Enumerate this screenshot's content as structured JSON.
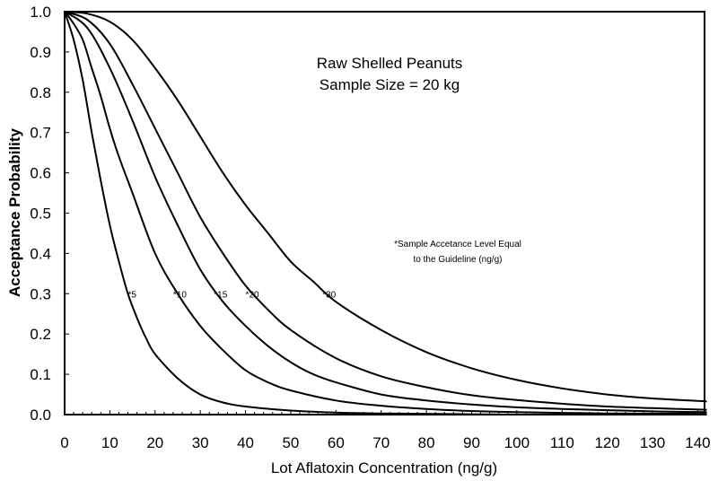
{
  "chart_data": {
    "type": "line",
    "title": "Raw Shelled Peanuts",
    "subtitle": "Sample Size = 20 kg",
    "xlabel": "Lot Aflatoxin Concentration (ng/g)",
    "ylabel": "Acceptance Probability",
    "xlim": [
      0,
      140
    ],
    "ylim": [
      0,
      1.0
    ],
    "x_ticks": [
      "0",
      "10",
      "20",
      "30",
      "40",
      "50",
      "60",
      "70",
      "80",
      "90",
      "100",
      "110",
      "120",
      "130",
      "140"
    ],
    "y_ticks": [
      "0.0",
      "0.1",
      "0.2",
      "0.3",
      "0.4",
      "0.5",
      "0.6",
      "0.7",
      "0.8",
      "0.9",
      "1.0"
    ],
    "annotation": {
      "line1": "*Sample Accetance Level Equal",
      "line2": "to the Guideline (ng/g)"
    },
    "series": [
      {
        "name": "*5",
        "label_x": 14,
        "label_y": 0.3,
        "x": [
          0,
          2,
          4,
          6,
          8,
          10,
          12,
          14,
          16,
          18,
          20,
          25,
          30,
          35,
          40,
          50,
          60,
          70,
          80,
          90,
          100,
          120,
          142
        ],
        "y": [
          1.0,
          0.93,
          0.83,
          0.7,
          0.58,
          0.47,
          0.38,
          0.3,
          0.24,
          0.19,
          0.15,
          0.09,
          0.05,
          0.03,
          0.02,
          0.01,
          0.005,
          0.003,
          0.002,
          0.001,
          0.0,
          0.0,
          0.0
        ]
      },
      {
        "name": "*10",
        "label_x": 24,
        "label_y": 0.3,
        "x": [
          0,
          2,
          4,
          6,
          8,
          10,
          12,
          15,
          20,
          25,
          30,
          35,
          40,
          45,
          50,
          60,
          70,
          80,
          90,
          100,
          120,
          142
        ],
        "y": [
          1.0,
          0.97,
          0.93,
          0.86,
          0.79,
          0.71,
          0.64,
          0.55,
          0.4,
          0.3,
          0.22,
          0.16,
          0.11,
          0.08,
          0.06,
          0.035,
          0.022,
          0.014,
          0.009,
          0.006,
          0.003,
          0.002
        ]
      },
      {
        "name": "*15",
        "label_x": 33,
        "label_y": 0.3,
        "x": [
          0,
          5,
          10,
          15,
          20,
          25,
          30,
          35,
          40,
          45,
          50,
          55,
          60,
          70,
          80,
          90,
          100,
          110,
          120,
          130,
          142
        ],
        "y": [
          1.0,
          0.96,
          0.86,
          0.73,
          0.59,
          0.47,
          0.36,
          0.28,
          0.22,
          0.17,
          0.13,
          0.1,
          0.08,
          0.05,
          0.035,
          0.025,
          0.018,
          0.014,
          0.011,
          0.008,
          0.006
        ]
      },
      {
        "name": "*20",
        "label_x": 40,
        "label_y": 0.3,
        "x": [
          0,
          5,
          10,
          15,
          20,
          25,
          30,
          35,
          40,
          45,
          50,
          60,
          70,
          80,
          90,
          100,
          110,
          120,
          130,
          142
        ],
        "y": [
          1.0,
          0.98,
          0.92,
          0.82,
          0.71,
          0.6,
          0.49,
          0.4,
          0.32,
          0.26,
          0.21,
          0.14,
          0.095,
          0.068,
          0.048,
          0.036,
          0.027,
          0.02,
          0.016,
          0.012
        ]
      },
      {
        "name": "*30",
        "label_x": 57,
        "label_y": 0.3,
        "x": [
          0,
          5,
          10,
          15,
          20,
          25,
          30,
          35,
          40,
          45,
          50,
          55,
          60,
          70,
          80,
          90,
          100,
          110,
          120,
          130,
          142
        ],
        "y": [
          1.0,
          0.995,
          0.975,
          0.93,
          0.86,
          0.78,
          0.69,
          0.6,
          0.52,
          0.45,
          0.38,
          0.33,
          0.28,
          0.21,
          0.155,
          0.115,
          0.086,
          0.065,
          0.05,
          0.04,
          0.033
        ]
      }
    ]
  }
}
